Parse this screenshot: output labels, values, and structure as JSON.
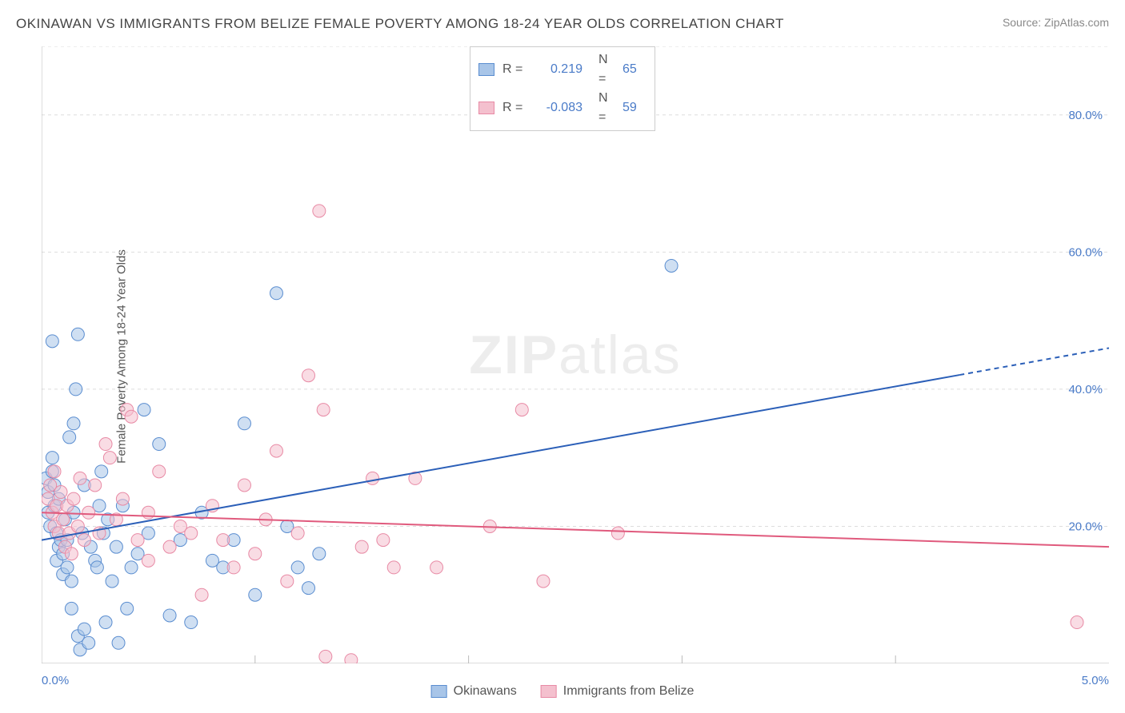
{
  "title": "OKINAWAN VS IMMIGRANTS FROM BELIZE FEMALE POVERTY AMONG 18-24 YEAR OLDS CORRELATION CHART",
  "source": "Source: ZipAtlas.com",
  "y_axis_label": "Female Poverty Among 18-24 Year Olds",
  "watermark_zip": "ZIP",
  "watermark_atlas": "atlas",
  "chart": {
    "type": "scatter",
    "xlim": [
      0,
      5
    ],
    "ylim": [
      0,
      90
    ],
    "x_ticks": [
      0,
      1,
      2,
      3,
      4,
      5
    ],
    "x_tick_labels_visible": [
      {
        "val": 0,
        "label": "0.0%"
      },
      {
        "val": 5,
        "label": "5.0%"
      }
    ],
    "y_ticks": [
      20,
      40,
      60,
      80
    ],
    "y_tick_labels": [
      "20.0%",
      "40.0%",
      "60.0%",
      "80.0%"
    ],
    "grid_color": "#dddddd",
    "axis_color": "#bbbbbb",
    "background_color": "#ffffff",
    "marker_radius": 8,
    "marker_opacity": 0.55,
    "line_width": 2
  },
  "series": [
    {
      "name": "Okinawans",
      "color_fill": "#a8c5e8",
      "color_stroke": "#5a8dd0",
      "color_line": "#2b5fb8",
      "r_value": "0.219",
      "n_value": "65",
      "trend": {
        "x1": 0,
        "y1": 18,
        "x2": 5,
        "y2": 46,
        "dash_from_x": 4.3
      },
      "points": [
        [
          0.02,
          27
        ],
        [
          0.03,
          25
        ],
        [
          0.03,
          22
        ],
        [
          0.04,
          20
        ],
        [
          0.05,
          28
        ],
        [
          0.05,
          30
        ],
        [
          0.06,
          23
        ],
        [
          0.06,
          26
        ],
        [
          0.07,
          19
        ],
        [
          0.07,
          15
        ],
        [
          0.08,
          24
        ],
        [
          0.08,
          17
        ],
        [
          0.09,
          18
        ],
        [
          0.1,
          16
        ],
        [
          0.1,
          13
        ],
        [
          0.11,
          21
        ],
        [
          0.12,
          14
        ],
        [
          0.12,
          18
        ],
        [
          0.13,
          33
        ],
        [
          0.14,
          8
        ],
        [
          0.14,
          12
        ],
        [
          0.15,
          22
        ],
        [
          0.15,
          35
        ],
        [
          0.16,
          40
        ],
        [
          0.17,
          4
        ],
        [
          0.17,
          48
        ],
        [
          0.18,
          2
        ],
        [
          0.19,
          19
        ],
        [
          0.2,
          5
        ],
        [
          0.2,
          26
        ],
        [
          0.22,
          3
        ],
        [
          0.23,
          17
        ],
        [
          0.25,
          15
        ],
        [
          0.26,
          14
        ],
        [
          0.27,
          23
        ],
        [
          0.28,
          28
        ],
        [
          0.29,
          19
        ],
        [
          0.3,
          6
        ],
        [
          0.31,
          21
        ],
        [
          0.33,
          12
        ],
        [
          0.35,
          17
        ],
        [
          0.36,
          3
        ],
        [
          0.38,
          23
        ],
        [
          0.4,
          8
        ],
        [
          0.42,
          14
        ],
        [
          0.45,
          16
        ],
        [
          0.48,
          37
        ],
        [
          0.5,
          19
        ],
        [
          0.55,
          32
        ],
        [
          0.6,
          7
        ],
        [
          0.65,
          18
        ],
        [
          0.7,
          6
        ],
        [
          0.75,
          22
        ],
        [
          0.8,
          15
        ],
        [
          0.85,
          14
        ],
        [
          0.9,
          18
        ],
        [
          0.95,
          35
        ],
        [
          1.0,
          10
        ],
        [
          1.1,
          54
        ],
        [
          1.15,
          20
        ],
        [
          1.2,
          14
        ],
        [
          1.25,
          11
        ],
        [
          1.3,
          16
        ],
        [
          2.95,
          58
        ],
        [
          0.05,
          47
        ]
      ]
    },
    {
      "name": "Immigrants from Belize",
      "color_fill": "#f4c0ce",
      "color_stroke": "#e88aa5",
      "color_line": "#e05a7d",
      "r_value": "-0.083",
      "n_value": "59",
      "trend": {
        "x1": 0,
        "y1": 22,
        "x2": 5,
        "y2": 17,
        "dash_from_x": null
      },
      "points": [
        [
          0.03,
          24
        ],
        [
          0.04,
          26
        ],
        [
          0.05,
          22
        ],
        [
          0.06,
          20
        ],
        [
          0.06,
          28
        ],
        [
          0.07,
          23
        ],
        [
          0.08,
          19
        ],
        [
          0.09,
          25
        ],
        [
          0.1,
          21
        ],
        [
          0.11,
          17
        ],
        [
          0.12,
          23
        ],
        [
          0.13,
          19
        ],
        [
          0.14,
          16
        ],
        [
          0.15,
          24
        ],
        [
          0.17,
          20
        ],
        [
          0.18,
          27
        ],
        [
          0.2,
          18
        ],
        [
          0.22,
          22
        ],
        [
          0.25,
          26
        ],
        [
          0.27,
          19
        ],
        [
          0.3,
          32
        ],
        [
          0.32,
          30
        ],
        [
          0.35,
          21
        ],
        [
          0.38,
          24
        ],
        [
          0.4,
          37
        ],
        [
          0.42,
          36
        ],
        [
          0.45,
          18
        ],
        [
          0.5,
          22
        ],
        [
          0.55,
          28
        ],
        [
          0.6,
          17
        ],
        [
          0.65,
          20
        ],
        [
          0.7,
          19
        ],
        [
          0.75,
          10
        ],
        [
          0.8,
          23
        ],
        [
          0.85,
          18
        ],
        [
          0.9,
          14
        ],
        [
          0.95,
          26
        ],
        [
          1.0,
          16
        ],
        [
          1.05,
          21
        ],
        [
          1.1,
          31
        ],
        [
          1.15,
          12
        ],
        [
          1.2,
          19
        ],
        [
          1.25,
          42
        ],
        [
          1.3,
          66
        ],
        [
          1.32,
          37
        ],
        [
          1.33,
          1
        ],
        [
          1.45,
          0.5
        ],
        [
          1.5,
          17
        ],
        [
          1.55,
          27
        ],
        [
          1.6,
          18
        ],
        [
          1.65,
          14
        ],
        [
          1.75,
          27
        ],
        [
          1.85,
          14
        ],
        [
          2.1,
          20
        ],
        [
          2.25,
          37
        ],
        [
          2.35,
          12
        ],
        [
          2.7,
          19
        ],
        [
          4.85,
          6
        ],
        [
          0.5,
          15
        ]
      ]
    }
  ],
  "legend_bottom": [
    {
      "label": "Okinawans",
      "series": 0
    },
    {
      "label": "Immigrants from Belize",
      "series": 1
    }
  ]
}
